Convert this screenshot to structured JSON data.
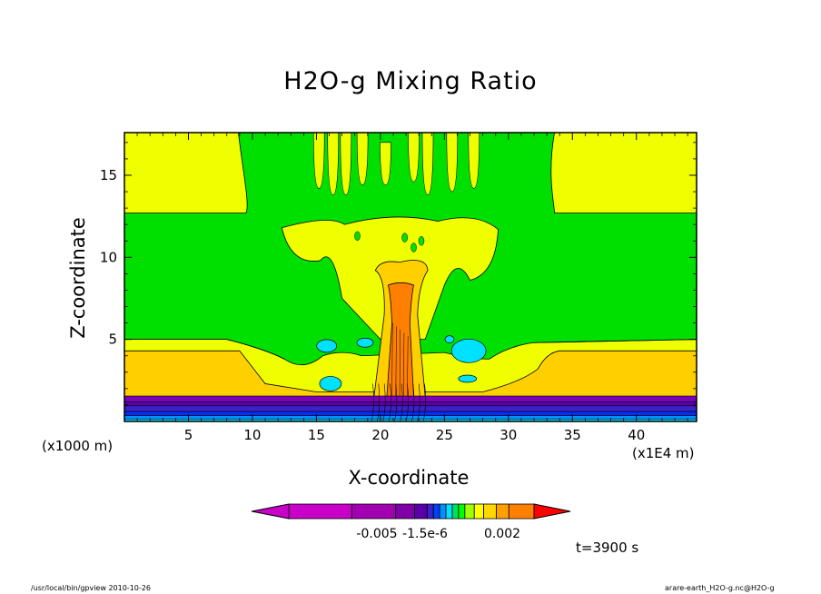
{
  "chart_data": {
    "type": "heatmap",
    "title": "H2O-g Mixing Ratio",
    "xlabel": "X-coordinate",
    "ylabel": "Z-coordinate",
    "x_unit": "(x1E4 m)",
    "y_unit": "(x1000 m)",
    "x_ticks": [
      "5",
      "10",
      "15",
      "20",
      "25",
      "30",
      "35",
      "40"
    ],
    "y_ticks": [
      "5",
      "10",
      "15"
    ],
    "x_tick_values": [
      5,
      10,
      15,
      20,
      25,
      30,
      35,
      40
    ],
    "y_tick_values": [
      5,
      10,
      15
    ],
    "xlim": [
      0,
      44.7
    ],
    "ylim": [
      0,
      17.6
    ],
    "colorbar_labels": [
      "-0.005",
      "-1.5e-6",
      "0.002"
    ],
    "colorbar_colors": [
      "#c800c8",
      "#a000b0",
      "#8000a8",
      "#5a00a8",
      "#3c20c8",
      "#0040ff",
      "#0090ff",
      "#00e0ff",
      "#00e060",
      "#00ff00",
      "#a0ff00",
      "#ffff00",
      "#ffd800",
      "#ffa000",
      "#ff8000",
      "#ff0000"
    ],
    "levels_colors": {
      "purple_deep": "#7b00b8",
      "purple": "#5a00a8",
      "blue": "#0030ff",
      "cyan": "#00e0ff",
      "green": "#00e000",
      "light_green": "#80ff00",
      "yellow": "#f0ff00",
      "gold": "#ffd000",
      "orange": "#ff8000"
    },
    "time_label": "t=3900 s"
  },
  "footer": {
    "left": "/usr/local/bin/gpview   2010-10-26",
    "right": "arare-earth_H2O-g.nc@H2O-g"
  }
}
